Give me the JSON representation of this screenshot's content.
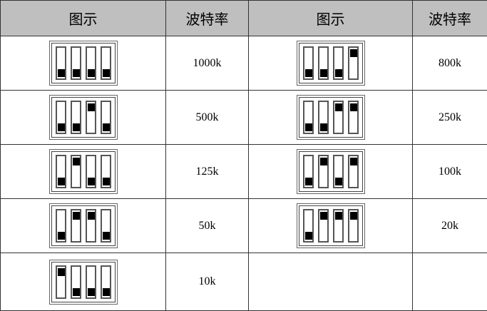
{
  "headers": [
    "图示",
    "波特率",
    "图示",
    "波特率"
  ],
  "rows": [
    [
      {
        "switches": [
          "down",
          "down",
          "down",
          "down"
        ],
        "baud": "1000k"
      },
      {
        "switches": [
          "down",
          "down",
          "down",
          "up"
        ],
        "baud": "800k"
      }
    ],
    [
      {
        "switches": [
          "down",
          "down",
          "up",
          "down"
        ],
        "baud": "500k"
      },
      {
        "switches": [
          "down",
          "down",
          "up",
          "up"
        ],
        "baud": "250k"
      }
    ],
    [
      {
        "switches": [
          "down",
          "up",
          "down",
          "down"
        ],
        "baud": "125k"
      },
      {
        "switches": [
          "down",
          "up",
          "down",
          "up"
        ],
        "baud": "100k"
      }
    ],
    [
      {
        "switches": [
          "down",
          "up",
          "up",
          "down"
        ],
        "baud": "50k"
      },
      {
        "switches": [
          "down",
          "up",
          "up",
          "up"
        ],
        "baud": "20k"
      }
    ],
    [
      {
        "switches": [
          "up",
          "down",
          "down",
          "down"
        ],
        "baud": "10k"
      },
      null
    ]
  ]
}
